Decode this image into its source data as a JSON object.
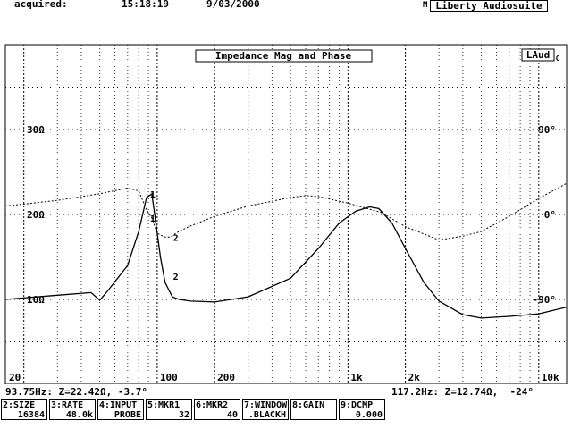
{
  "header": {
    "acquired_label": "acquired:",
    "time": "15:18:19",
    "date": "9/03/2000",
    "menu_marker": "M",
    "app_name": "Liberty Audiosuite"
  },
  "plot": {
    "title": "Impedance Mag and Phase",
    "logo": "LAud",
    "logo_suffix": "C",
    "left_ticks": [
      "30Ω",
      "20Ω",
      "10Ω"
    ],
    "right_ticks": [
      "90°",
      "0°",
      "-90°"
    ],
    "x_ticks": [
      "20",
      "100",
      "200",
      "1k",
      "2k",
      "10k"
    ],
    "markers": [
      "1",
      "1",
      "2",
      "2"
    ]
  },
  "readouts": {
    "left": "93.75Hz: Z=22.42Ω, -3.7°",
    "right": "117.2Hz: Z=12.74Ω,  -24°"
  },
  "fkeys": [
    {
      "label": "2:SIZE",
      "value": "16384"
    },
    {
      "label": "3:RATE",
      "value": "48.0k"
    },
    {
      "label": "4:INPUT",
      "value": "PROBE"
    },
    {
      "label": "5:MKR1",
      "value": "32"
    },
    {
      "label": "6:MKR2",
      "value": "40"
    },
    {
      "label": "7:WINDOW",
      "value": ".BLACKH"
    },
    {
      "label": "8:GAIN",
      "value": ""
    },
    {
      "label": "9:DCMP",
      "value": "0.000"
    }
  ],
  "chart_data": {
    "type": "line",
    "title": "Impedance Mag and Phase",
    "x_scale": "log",
    "xlim": [
      16,
      14000
    ],
    "ylim_left": [
      0,
      40
    ],
    "ylim_right": [
      -180,
      180
    ],
    "ylabel_left_unit": "Ω",
    "ylabel_right_unit": "°",
    "x_tick_values": [
      20,
      100,
      200,
      1000,
      2000,
      10000
    ],
    "grid": true,
    "series": [
      {
        "axis": "left",
        "line": "solid",
        "points": [
          [
            16,
            10.0
          ],
          [
            30,
            10.5
          ],
          [
            45,
            10.8
          ],
          [
            50,
            9.9
          ],
          [
            55,
            11.0
          ],
          [
            70,
            14.0
          ],
          [
            80,
            18.0
          ],
          [
            88,
            22.0
          ],
          [
            93.75,
            22.42
          ],
          [
            97,
            20.0
          ],
          [
            104,
            15.0
          ],
          [
            110,
            12.0
          ],
          [
            120,
            10.3
          ],
          [
            130,
            10.0
          ],
          [
            150,
            9.8
          ],
          [
            200,
            9.7
          ],
          [
            300,
            10.3
          ],
          [
            500,
            12.5
          ],
          [
            700,
            16.0
          ],
          [
            900,
            19.0
          ],
          [
            1100,
            20.4
          ],
          [
            1300,
            20.9
          ],
          [
            1450,
            20.7
          ],
          [
            1700,
            19.0
          ],
          [
            2000,
            16.0
          ],
          [
            2500,
            12.0
          ],
          [
            3000,
            9.8
          ],
          [
            4000,
            8.2
          ],
          [
            5000,
            7.8
          ],
          [
            7000,
            8.0
          ],
          [
            10000,
            8.3
          ],
          [
            14000,
            9.1
          ]
        ]
      },
      {
        "axis": "right",
        "line": "dotted",
        "points": [
          [
            16,
            9
          ],
          [
            20,
            11
          ],
          [
            30,
            15
          ],
          [
            50,
            22
          ],
          [
            70,
            28
          ],
          [
            80,
            25
          ],
          [
            88,
            5
          ],
          [
            93.75,
            -3.7
          ],
          [
            100,
            -20
          ],
          [
            110,
            -24
          ],
          [
            117.2,
            -24
          ],
          [
            130,
            -18
          ],
          [
            150,
            -12
          ],
          [
            200,
            -2
          ],
          [
            300,
            9
          ],
          [
            500,
            18
          ],
          [
            600,
            20
          ],
          [
            700,
            19
          ],
          [
            1000,
            12
          ],
          [
            1500,
            2
          ],
          [
            2000,
            -13
          ],
          [
            3000,
            -27
          ],
          [
            4000,
            -23
          ],
          [
            5000,
            -18
          ],
          [
            7000,
            -2
          ],
          [
            10000,
            17
          ],
          [
            14000,
            33
          ]
        ]
      }
    ]
  }
}
